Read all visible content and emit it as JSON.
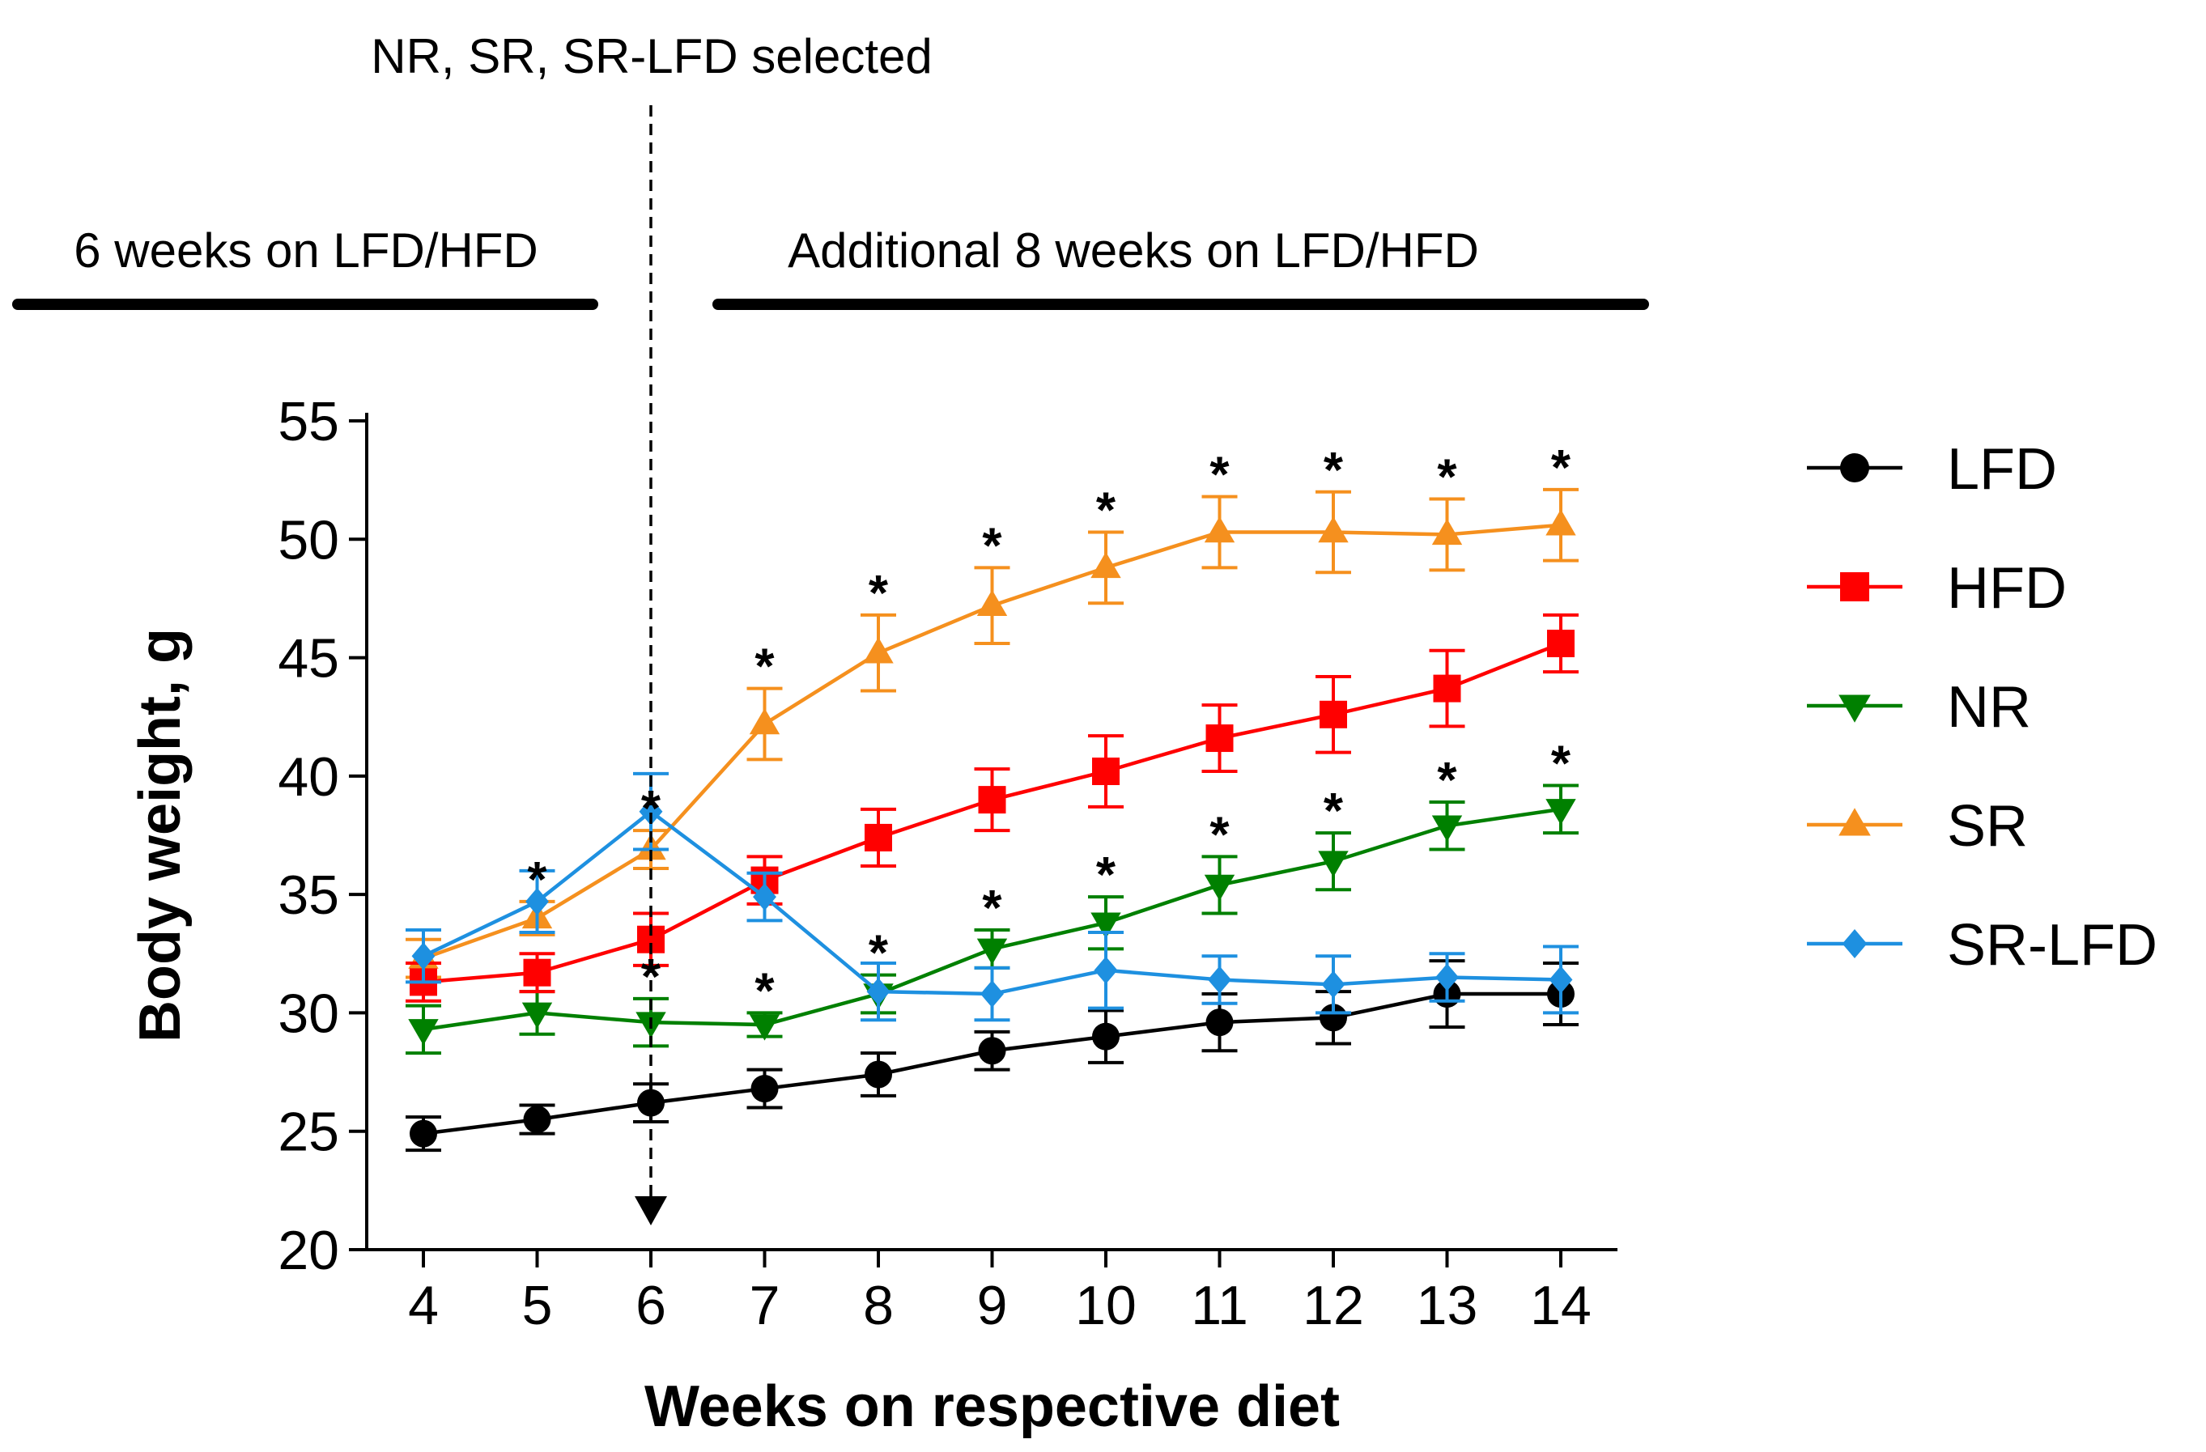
{
  "chart_data": {
    "type": "line",
    "xlabel": "Weeks on respective diet",
    "ylabel": "Body weight, g",
    "xlim": [
      4,
      14
    ],
    "ylim": [
      20,
      55
    ],
    "x_ticks": [
      4,
      5,
      6,
      7,
      8,
      9,
      10,
      11,
      12,
      13,
      14
    ],
    "y_ticks": [
      20,
      25,
      30,
      35,
      40,
      45,
      50,
      55
    ],
    "legend_position": "right",
    "annotations": {
      "selection_label": "NR, SR, SR-LFD selected",
      "selection_week": 6,
      "phase1_label": "6 weeks on LFD/HFD",
      "phase2_label": "Additional 8 weeks on LFD/HFD",
      "significance_marker": "*"
    },
    "series": [
      {
        "name": "LFD",
        "color": "#000000",
        "marker": "circle",
        "x": [
          4,
          5,
          6,
          7,
          8,
          9,
          10,
          11,
          12,
          13,
          14
        ],
        "values": [
          24.9,
          25.5,
          26.2,
          26.8,
          27.4,
          28.4,
          29.0,
          29.6,
          29.8,
          30.8,
          30.8
        ],
        "errors": [
          0.7,
          0.6,
          0.8,
          0.8,
          0.9,
          0.8,
          1.1,
          1.2,
          1.1,
          1.4,
          1.3
        ],
        "stars_x": []
      },
      {
        "name": "HFD",
        "color": "#ff0000",
        "marker": "square",
        "x": [
          4,
          5,
          6,
          7,
          8,
          9,
          10,
          11,
          12,
          13,
          14
        ],
        "values": [
          31.3,
          31.7,
          33.1,
          35.6,
          37.4,
          39.0,
          40.2,
          41.6,
          42.6,
          43.7,
          45.6
        ],
        "errors": [
          0.8,
          0.8,
          1.1,
          1.0,
          1.2,
          1.3,
          1.5,
          1.4,
          1.6,
          1.6,
          1.2
        ],
        "stars_x": []
      },
      {
        "name": "NR",
        "color": "#008000",
        "marker": "triangle-down",
        "x": [
          4,
          5,
          6,
          7,
          8,
          9,
          10,
          11,
          12,
          13,
          14
        ],
        "values": [
          29.3,
          30.0,
          29.6,
          29.5,
          30.8,
          32.7,
          33.8,
          35.4,
          36.4,
          37.9,
          38.6
        ],
        "errors": [
          1.0,
          0.9,
          1.0,
          0.5,
          0.8,
          0.8,
          1.1,
          1.2,
          1.2,
          1.0,
          1.0
        ],
        "stars_x": [
          6,
          7,
          8,
          9,
          10,
          11,
          12,
          13,
          14
        ]
      },
      {
        "name": "SR",
        "color": "#f5901e",
        "marker": "triangle-up",
        "x": [
          4,
          5,
          6,
          7,
          8,
          9,
          10,
          11,
          12,
          13,
          14
        ],
        "values": [
          32.3,
          34.0,
          36.9,
          42.2,
          45.2,
          47.2,
          48.8,
          50.3,
          50.3,
          50.2,
          50.6
        ],
        "errors": [
          0.8,
          0.7,
          0.8,
          1.5,
          1.6,
          1.6,
          1.5,
          1.5,
          1.7,
          1.5,
          1.5
        ],
        "stars_x": [
          5,
          6,
          7,
          8,
          9,
          10,
          11,
          12,
          13,
          14
        ]
      },
      {
        "name": "SR-LFD",
        "color": "#1e90e0",
        "marker": "diamond",
        "x": [
          4,
          5,
          6,
          7,
          8,
          9,
          10,
          11,
          12,
          13,
          14
        ],
        "values": [
          32.4,
          34.7,
          38.5,
          34.9,
          30.9,
          30.8,
          31.8,
          31.4,
          31.2,
          31.5,
          31.4
        ],
        "errors": [
          1.1,
          1.3,
          1.6,
          1.0,
          1.2,
          1.1,
          1.6,
          1.0,
          1.2,
          1.0,
          1.4
        ],
        "stars_x": []
      }
    ]
  }
}
